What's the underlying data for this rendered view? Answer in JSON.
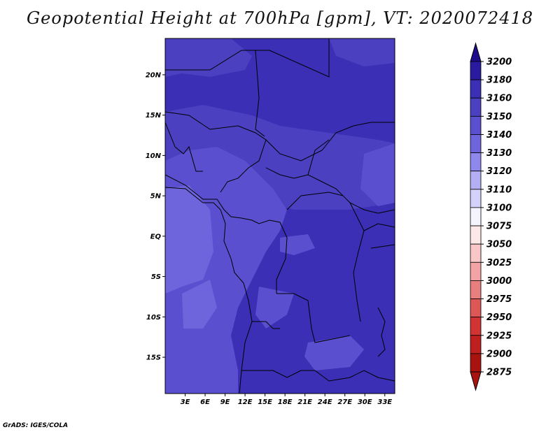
{
  "title": "Geopotential Height at 700hPa [gpm], VT: 2020072418",
  "credit": "GrADS: IGES/COLA",
  "lat_ticks": [
    "20N",
    "15N",
    "10N",
    "5N",
    "EQ",
    "5S",
    "10S",
    "15S"
  ],
  "lat_values": [
    20,
    15,
    10,
    5,
    0,
    -5,
    -10,
    -15
  ],
  "lon_ticks": [
    "3E",
    "6E",
    "9E",
    "12E",
    "15E",
    "18E",
    "21E",
    "24E",
    "27E",
    "30E",
    "33E"
  ],
  "lon_values": [
    3,
    6,
    9,
    12,
    15,
    18,
    21,
    24,
    27,
    30,
    33
  ],
  "map_extent": {
    "lon_min": 0,
    "lon_max": 34.5,
    "lat_min": -19.5,
    "lat_max": 24.5
  },
  "colorbar": {
    "levels": [
      "3200",
      "3180",
      "3160",
      "3150",
      "3140",
      "3130",
      "3120",
      "3110",
      "3100",
      "3075",
      "3050",
      "3025",
      "3000",
      "2975",
      "2950",
      "2925",
      "2900",
      "2875"
    ],
    "colors": [
      "#1e0b8c",
      "#2a1aa0",
      "#3a2fb5",
      "#4a40c0",
      "#5a50cf",
      "#6e64dc",
      "#8f88ec",
      "#b3aff5",
      "#d4d2fb",
      "#f4f4ff",
      "#fde8e8",
      "#f9c7c7",
      "#f2a3a3",
      "#e87f7f",
      "#dd5757",
      "#d23434",
      "#c01f1f",
      "#a8130f"
    ]
  },
  "field_colors": {
    "h3160": "#3a2fb5",
    "h3150": "#4a40c0",
    "h3140": "#5a50cf",
    "h3130": "#6e64dc"
  }
}
